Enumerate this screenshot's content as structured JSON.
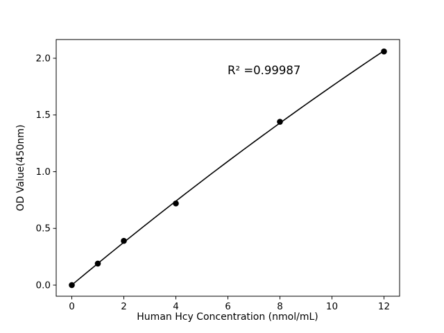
{
  "chart_data": {
    "type": "line",
    "title": "",
    "xlabel": "Human Hcy Concentration (nmol/mL)",
    "ylabel": "OD Value(450nm)",
    "x": [
      0,
      1,
      2,
      4,
      8,
      12
    ],
    "series": [
      {
        "name": "OD Value(450nm)",
        "values": [
          0.0,
          0.19,
          0.39,
          0.72,
          1.44,
          2.06
        ]
      }
    ],
    "annotation": {
      "text": "R² =0.99987"
    },
    "xlim": [
      -0.6,
      12.6
    ],
    "ylim": [
      -0.098,
      2.165
    ],
    "xticks": [
      0,
      2,
      4,
      6,
      8,
      10,
      12
    ],
    "xtick_labels": [
      "0",
      "2",
      "4",
      "6",
      "8",
      "10",
      "12"
    ],
    "yticks": [
      0.0,
      0.5,
      1.0,
      1.5,
      2.0
    ],
    "ytick_labels": [
      "0.0",
      "0.5",
      "1.0",
      "1.5",
      "2.0"
    ],
    "grid": false,
    "legend_position": "none",
    "line_color": "#000000",
    "marker_color": "#000000",
    "frame_color": "#000000",
    "background_color": "#ffffff",
    "trendline": {
      "type": "quadratic",
      "a": 0.001,
      "b": 0.1913,
      "c": -0.0016
    }
  }
}
